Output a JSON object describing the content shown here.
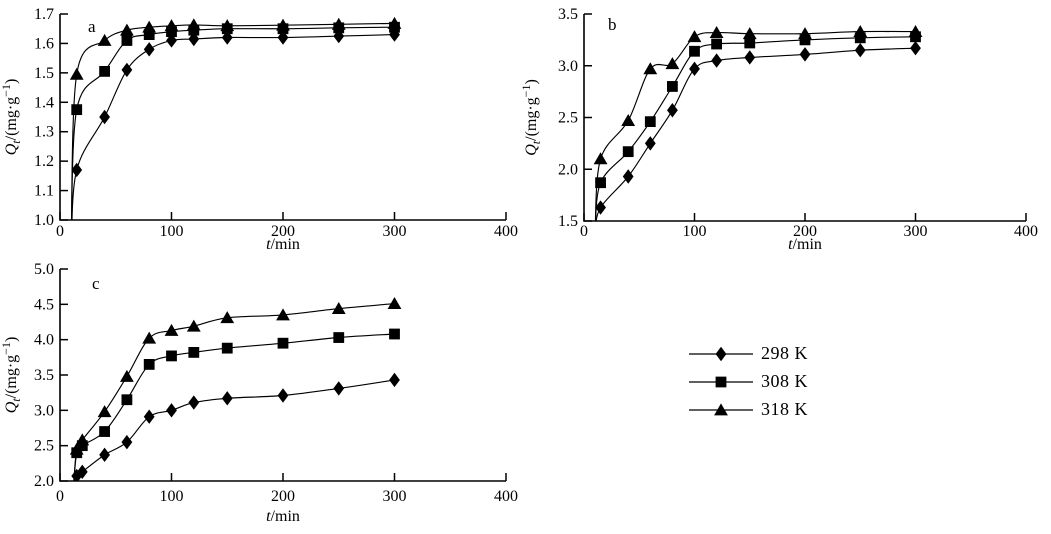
{
  "figure": {
    "background": "#ffffff",
    "ink": "#000000"
  },
  "legend": {
    "position": "right-middle",
    "items": [
      {
        "label": "298 K",
        "marker": "diamond"
      },
      {
        "label": "308 K",
        "marker": "square"
      },
      {
        "label": "318 K",
        "marker": "triangle"
      }
    ]
  },
  "chart_data": [
    {
      "id": "a",
      "type": "line",
      "panel_label": "a",
      "xlabel_segments": [
        {
          "t": "t",
          "italic": true
        },
        {
          "t": "/min"
        }
      ],
      "ylabel_segments": [
        {
          "t": "Q",
          "italic": true
        },
        {
          "t": "t",
          "italic": true,
          "script": "sub"
        },
        {
          "t": "/(mg·g"
        },
        {
          "t": "−1",
          "script": "sup"
        },
        {
          "t": ")"
        }
      ],
      "xlim": [
        0,
        400
      ],
      "xticks": [
        0,
        100,
        200,
        300,
        400
      ],
      "ylim": [
        1.0,
        1.7
      ],
      "yticks": [
        1.0,
        1.1,
        1.2,
        1.3,
        1.4,
        1.5,
        1.6,
        1.7
      ],
      "grid": false,
      "series": [
        {
          "name": "298 K",
          "marker": "diamond",
          "x": [
            10,
            15,
            40,
            60,
            80,
            100,
            120,
            150,
            200,
            250,
            300
          ],
          "y": [
            0.9,
            1.17,
            1.35,
            1.51,
            1.58,
            1.61,
            1.615,
            1.62,
            1.62,
            1.625,
            1.63
          ]
        },
        {
          "name": "308 K",
          "marker": "square",
          "x": [
            10,
            15,
            40,
            60,
            80,
            100,
            120,
            150,
            200,
            250,
            300
          ],
          "y": [
            0.9,
            1.375,
            1.505,
            1.61,
            1.63,
            1.64,
            1.645,
            1.65,
            1.65,
            1.653,
            1.655
          ]
        },
        {
          "name": "318 K",
          "marker": "triangle",
          "x": [
            10,
            15,
            40,
            60,
            80,
            100,
            120,
            150,
            200,
            250,
            300
          ],
          "y": [
            0.9,
            1.495,
            1.61,
            1.645,
            1.655,
            1.66,
            1.663,
            1.66,
            1.662,
            1.665,
            1.668
          ]
        }
      ]
    },
    {
      "id": "b",
      "type": "line",
      "panel_label": "b",
      "xlabel_segments": [
        {
          "t": "t",
          "italic": true
        },
        {
          "t": "/min"
        }
      ],
      "ylabel_segments": [
        {
          "t": "Q",
          "italic": true
        },
        {
          "t": "t",
          "italic": true,
          "script": "sub"
        },
        {
          "t": "/(mg·g"
        },
        {
          "t": "−1",
          "script": "sup"
        },
        {
          "t": ")"
        }
      ],
      "xlim": [
        0,
        400
      ],
      "xticks": [
        0,
        100,
        200,
        300,
        400
      ],
      "ylim": [
        1.5,
        3.5
      ],
      "yticks": [
        1.5,
        2.0,
        2.5,
        3.0,
        3.5
      ],
      "grid": false,
      "series": [
        {
          "name": "298 K",
          "marker": "diamond",
          "x": [
            10,
            15,
            40,
            60,
            80,
            100,
            120,
            150,
            200,
            250,
            300
          ],
          "y": [
            1.4,
            1.63,
            1.93,
            2.25,
            2.57,
            2.97,
            3.05,
            3.08,
            3.11,
            3.15,
            3.17
          ]
        },
        {
          "name": "308 K",
          "marker": "square",
          "x": [
            10,
            15,
            40,
            60,
            80,
            100,
            120,
            150,
            200,
            250,
            300
          ],
          "y": [
            1.4,
            1.87,
            2.17,
            2.46,
            2.8,
            3.14,
            3.21,
            3.22,
            3.25,
            3.27,
            3.28
          ]
        },
        {
          "name": "318 K",
          "marker": "triangle",
          "x": [
            10,
            15,
            40,
            60,
            80,
            100,
            120,
            150,
            200,
            250,
            300
          ],
          "y": [
            1.4,
            2.1,
            2.47,
            2.97,
            3.02,
            3.28,
            3.32,
            3.31,
            3.31,
            3.33,
            3.33
          ]
        }
      ]
    },
    {
      "id": "c",
      "type": "line",
      "panel_label": "c",
      "xlabel_segments": [
        {
          "t": "t",
          "italic": true
        },
        {
          "t": "/min"
        }
      ],
      "ylabel_segments": [
        {
          "t": "Q",
          "italic": true
        },
        {
          "t": "t",
          "italic": true,
          "script": "sub"
        },
        {
          "t": "/(mg·g"
        },
        {
          "t": "−1",
          "script": "sup"
        },
        {
          "t": ")"
        }
      ],
      "xlim": [
        0,
        400
      ],
      "xticks": [
        0,
        100,
        200,
        300,
        400
      ],
      "ylim": [
        2.0,
        5.0
      ],
      "yticks": [
        2.0,
        2.5,
        3.0,
        3.5,
        4.0,
        4.5,
        5.0
      ],
      "grid": false,
      "series": [
        {
          "name": "298 K",
          "marker": "diamond",
          "x": [
            12,
            15,
            20,
            40,
            60,
            80,
            100,
            120,
            150,
            200,
            250,
            300
          ],
          "y": [
            1.9,
            2.07,
            2.13,
            2.37,
            2.55,
            2.91,
            3.0,
            3.11,
            3.17,
            3.21,
            3.31,
            3.43
          ]
        },
        {
          "name": "308 K",
          "marker": "square",
          "x": [
            12,
            15,
            20,
            40,
            60,
            80,
            100,
            120,
            150,
            200,
            250,
            300
          ],
          "y": [
            1.9,
            2.4,
            2.5,
            2.7,
            3.15,
            3.65,
            3.77,
            3.82,
            3.88,
            3.95,
            4.03,
            4.08
          ]
        },
        {
          "name": "318 K",
          "marker": "triangle",
          "x": [
            12,
            15,
            20,
            40,
            60,
            80,
            100,
            120,
            150,
            200,
            250,
            300
          ],
          "y": [
            1.9,
            2.45,
            2.58,
            2.98,
            3.48,
            4.02,
            4.13,
            4.19,
            4.31,
            4.35,
            4.44,
            4.51
          ]
        }
      ]
    }
  ]
}
